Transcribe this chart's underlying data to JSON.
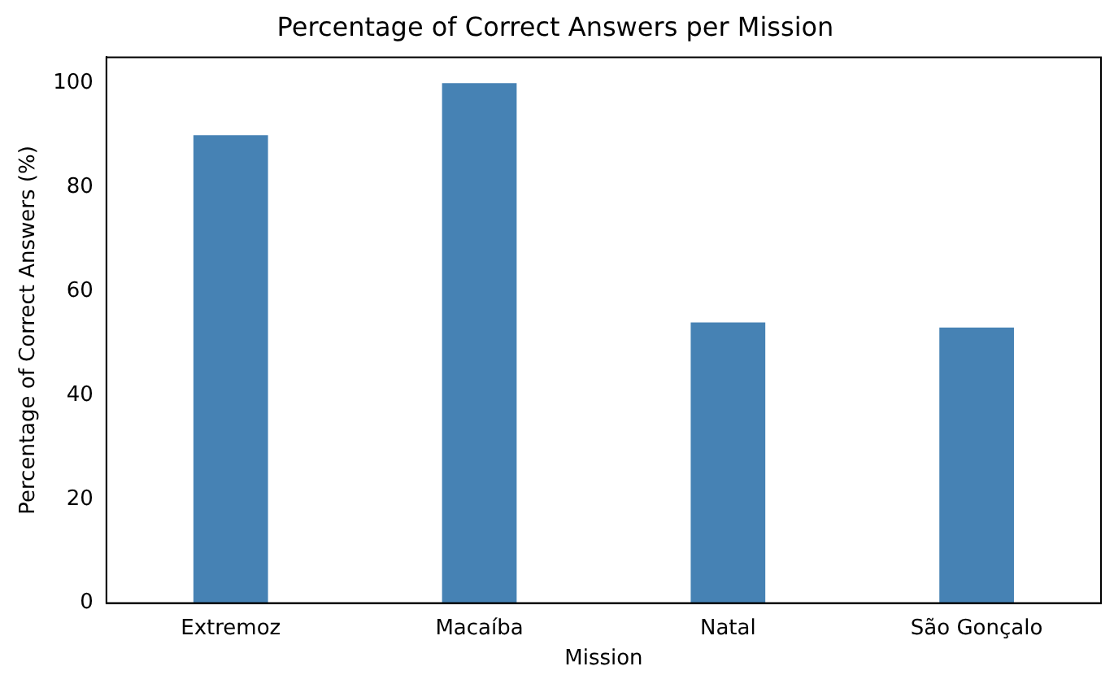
{
  "chart_data": {
    "type": "bar",
    "title": "Percentage of Correct Answers per Mission",
    "xlabel": "Mission",
    "ylabel": "Percentage of Correct Answers (%)",
    "categories": [
      "Extremoz",
      "Macaíba",
      "Natal",
      "São Gonçalo"
    ],
    "values": [
      90,
      100,
      54,
      53
    ],
    "color": "#4682b4",
    "ylim": [
      0,
      105
    ],
    "yticks": [
      0,
      20,
      40,
      60,
      80,
      100
    ],
    "grid": false
  }
}
